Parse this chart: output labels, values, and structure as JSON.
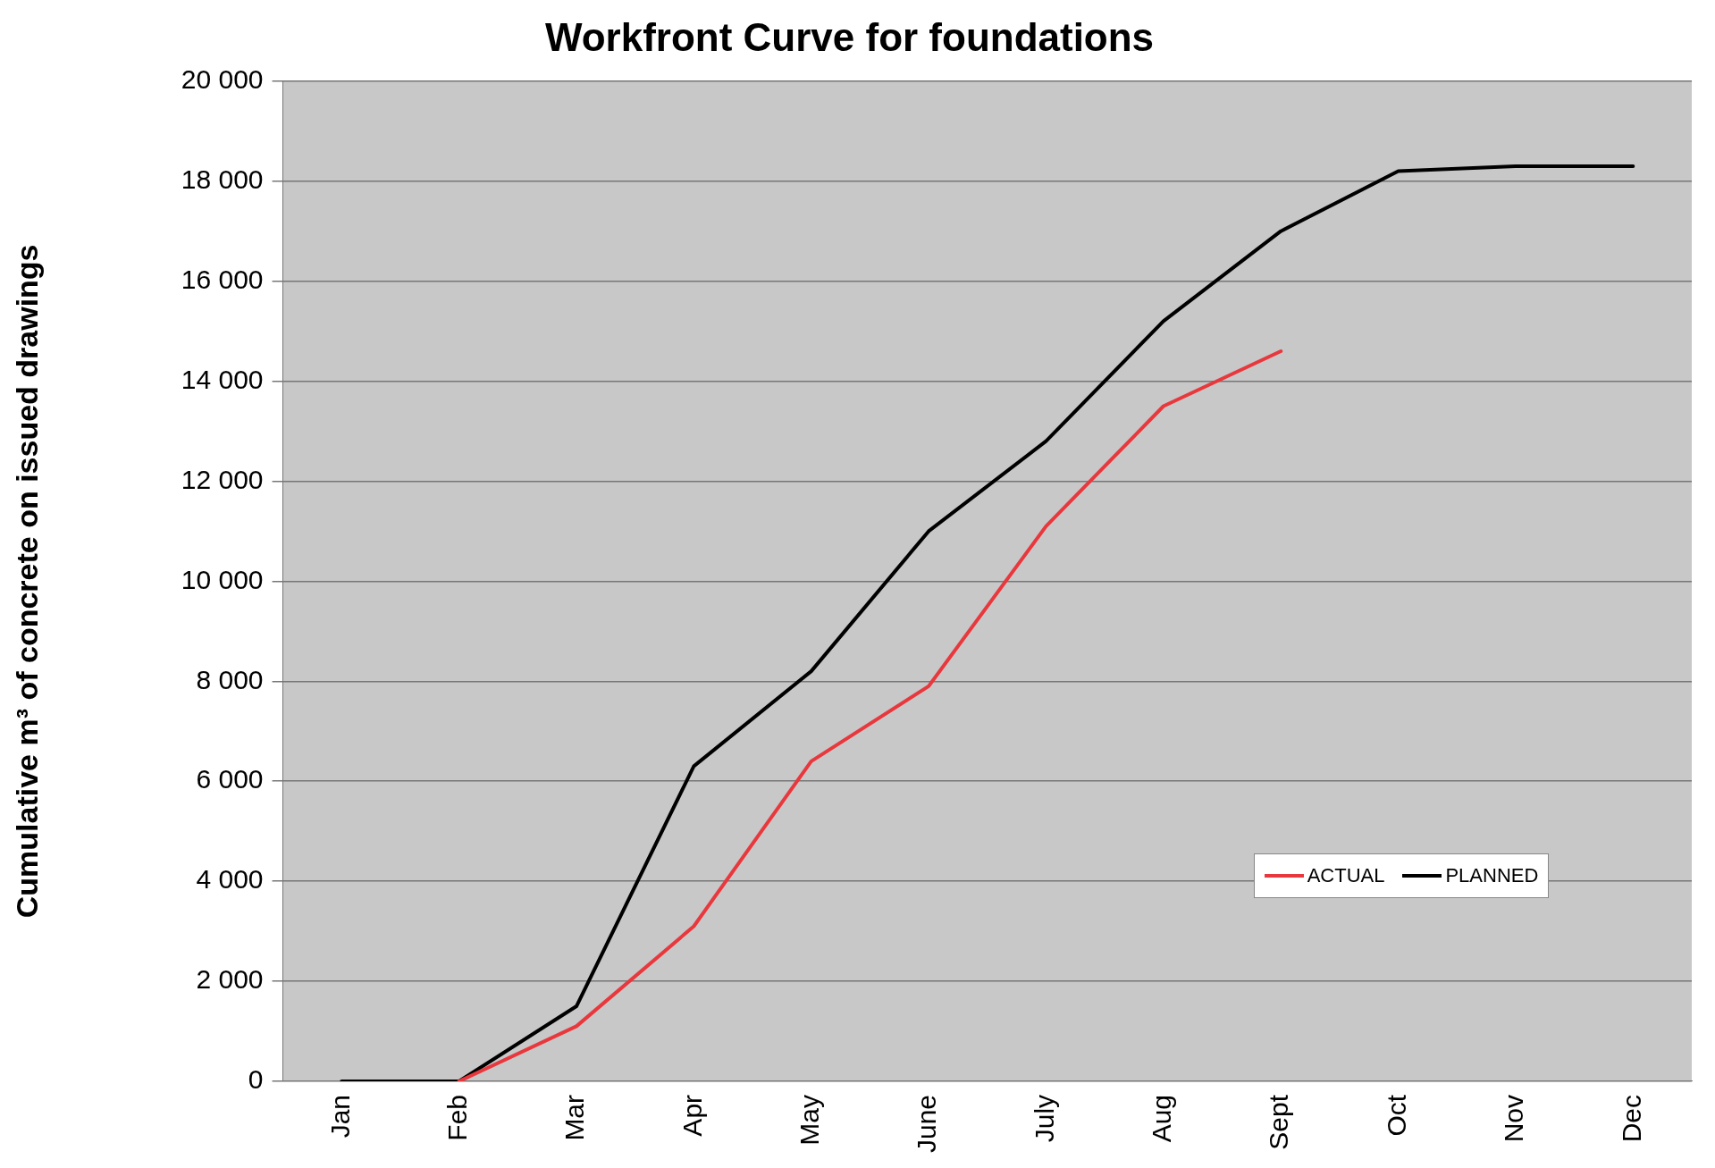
{
  "chart_data": {
    "type": "line",
    "title": "Workfront Curve for foundations",
    "ylabel": "Cumulative m³ of concrete on issued drawings",
    "categories": [
      "Jan",
      "Feb",
      "Mar",
      "Apr",
      "May",
      "June",
      "July",
      "Aug",
      "Sept",
      "Oct",
      "Nov",
      "Dec"
    ],
    "series": [
      {
        "name": "ACTUAL",
        "color": "#e8383d",
        "values": [
          null,
          0,
          1100,
          3100,
          6400,
          7900,
          11100,
          13500,
          14600,
          null,
          null,
          null
        ]
      },
      {
        "name": "PLANNED",
        "color": "#000000",
        "values": [
          0,
          0,
          1500,
          6300,
          8200,
          11000,
          12800,
          15200,
          17000,
          18200,
          18300,
          18300
        ]
      }
    ],
    "ylim": [
      0,
      20000
    ],
    "yticks": [
      {
        "value": 0,
        "label": "0"
      },
      {
        "value": 2000,
        "label": "2 000"
      },
      {
        "value": 4000,
        "label": "4 000"
      },
      {
        "value": 6000,
        "label": "6 000"
      },
      {
        "value": 8000,
        "label": "8 000"
      },
      {
        "value": 10000,
        "label": "10 000"
      },
      {
        "value": 12000,
        "label": "12 000"
      },
      {
        "value": 14000,
        "label": "14 000"
      },
      {
        "value": 16000,
        "label": "16 000"
      },
      {
        "value": 18000,
        "label": "18 000"
      },
      {
        "value": 20000,
        "label": "20 000"
      }
    ],
    "grid": "y",
    "legend": "bottom right",
    "marker": "none",
    "line_style": "solid"
  }
}
